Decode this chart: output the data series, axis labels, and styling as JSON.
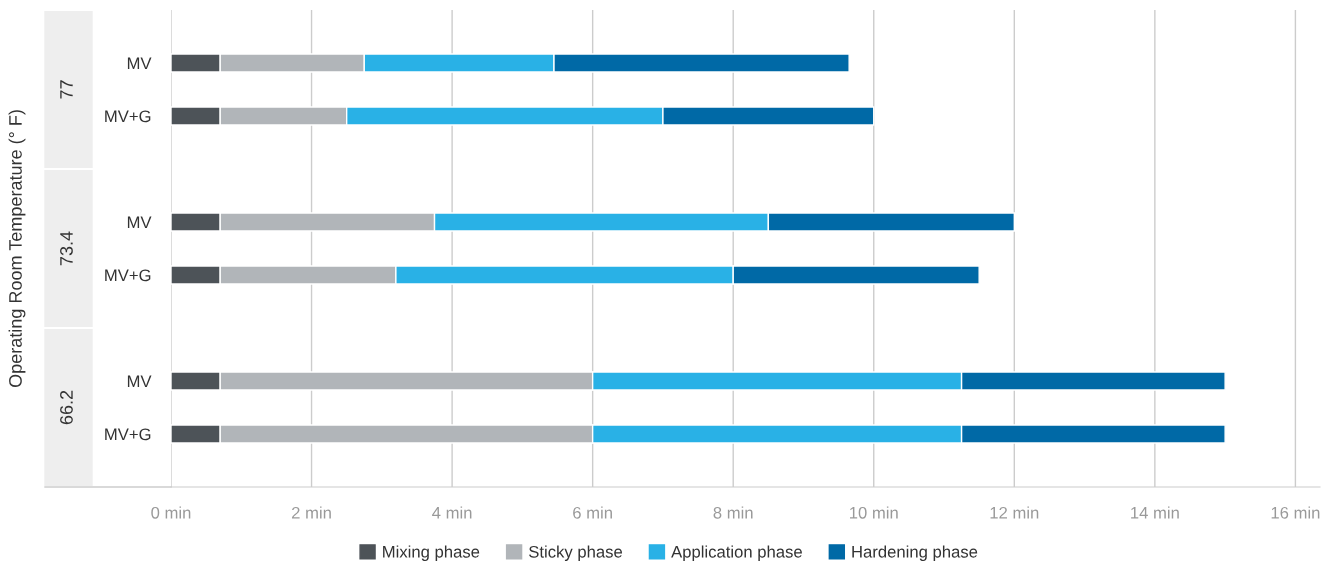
{
  "chart_data": {
    "type": "bar",
    "orientation": "horizontal",
    "stacked": true,
    "ylabel": "Operating Room Temperature (° F)",
    "categories": [
      "MV",
      "MV+G",
      "MV",
      "MV+G",
      "MV",
      "MV+G"
    ],
    "annotations": [
      "77",
      "73.4",
      "66.2"
    ],
    "series": [
      {
        "name": "Mixing phase",
        "color": "#4d5358",
        "values": [
          0.7,
          0.7,
          0.7,
          0.7,
          0.7,
          0.7
        ]
      },
      {
        "name": "Sticky phase",
        "color": "#b1b5b9",
        "values": [
          2.05,
          1.8,
          3.05,
          2.5,
          5.3,
          5.3
        ]
      },
      {
        "name": "Application phase",
        "color": "#29b1e6",
        "values": [
          2.7,
          4.5,
          4.75,
          4.8,
          5.25,
          5.25
        ]
      },
      {
        "name": "Hardening phase",
        "color": "#0069a6",
        "values": [
          4.2,
          3.0,
          3.5,
          3.5,
          3.75,
          3.75
        ]
      }
    ],
    "xlim": [
      0,
      16.35
    ],
    "xticks": [
      {
        "value": 0,
        "label": "0 min"
      },
      {
        "value": 2,
        "label": "2 min"
      },
      {
        "value": 4,
        "label": "4 min"
      },
      {
        "value": 6,
        "label": "6 min"
      },
      {
        "value": 8,
        "label": "8 min"
      },
      {
        "value": 10,
        "label": "10 min"
      },
      {
        "value": 12,
        "label": "12 min"
      },
      {
        "value": 14,
        "label": "14 min"
      },
      {
        "value": 16,
        "label": "16 min"
      }
    ],
    "grid": "x",
    "legend": "bottom"
  }
}
